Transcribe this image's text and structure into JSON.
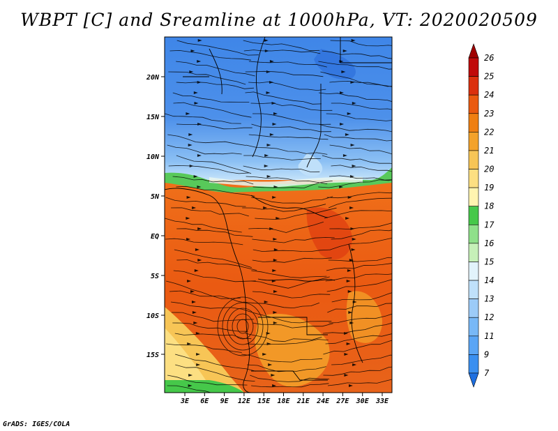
{
  "title": "WBPT [C] and Sreamline at 1000hPa, VT: 2020020509",
  "credit": "GrADS: IGES/COLA",
  "map": {
    "lat_labels": [
      "20N",
      "15N",
      "10N",
      "5N",
      "EQ",
      "5S",
      "10S",
      "15S"
    ],
    "lon_labels": [
      "3E",
      "6E",
      "9E",
      "12E",
      "15E",
      "18E",
      "21E",
      "24E",
      "27E",
      "30E",
      "33E"
    ]
  },
  "colorbar": {
    "labels": [
      "7",
      "9",
      "11",
      "12",
      "13",
      "14",
      "15",
      "16",
      "17",
      "18",
      "19",
      "20",
      "21",
      "22",
      "23",
      "24",
      "25",
      "26"
    ],
    "colors": [
      "#1e6fe0",
      "#3a8ff0",
      "#5aa5f5",
      "#78b8f7",
      "#9ccbf8",
      "#bfe0fa",
      "#e2f3fb",
      "#c6f0b8",
      "#8fe08a",
      "#46c84a",
      "#fff4b0",
      "#fcdf82",
      "#f7c556",
      "#f3a22a",
      "#ef7f12",
      "#ea5a10",
      "#db300e",
      "#c00a0a",
      "#a00000"
    ]
  }
}
